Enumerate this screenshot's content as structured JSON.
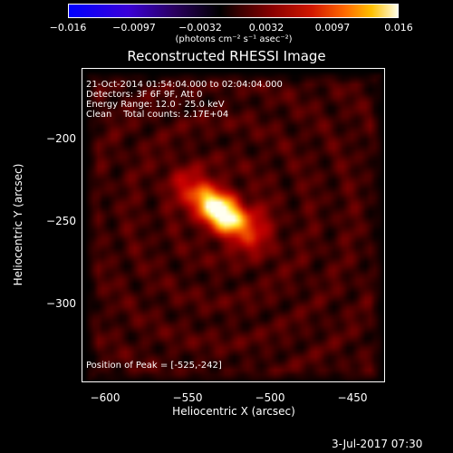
{
  "colorbar": {
    "ticks": [
      "−0.016",
      "−0.0097",
      "−0.0032",
      "0.0032",
      "0.0097",
      "0.016"
    ],
    "unit_label": "(photons cm⁻² s⁻¹ asec⁻²)"
  },
  "title": "Reconstructed RHESSI Image",
  "info": {
    "time_range": "21-Oct-2014 01:54:04.000 to 02:04:04.000",
    "detectors": "Detectors: 3F 6F 9F, Att 0",
    "energy": "Energy Range: 12.0 - 25.0 keV",
    "clean": "Clean    Total counts: 2.17E+04"
  },
  "peak_label": "Position of Peak = [-525,-242]",
  "x_axis": {
    "label": "Heliocentric X (arcsec)",
    "ticks": [
      "−600",
      "−550",
      "−500",
      "−450"
    ]
  },
  "y_axis": {
    "label": "Heliocentric Y (arcsec)",
    "ticks": [
      "−200",
      "−250",
      "−300"
    ]
  },
  "footer_date": "3-Jul-2017 07:30"
}
